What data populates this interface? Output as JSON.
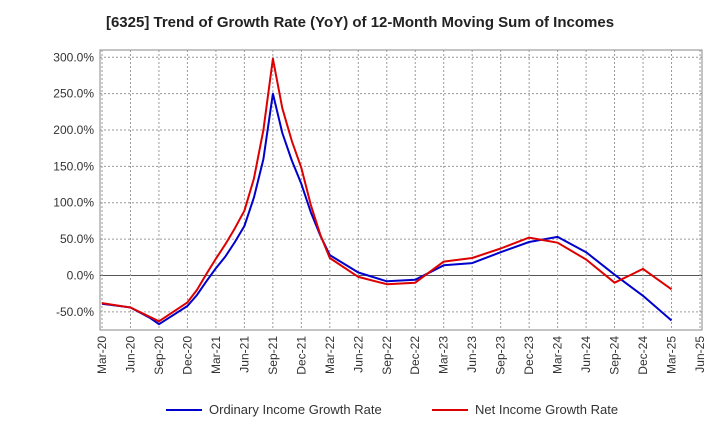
{
  "chart_data": {
    "type": "line",
    "title": "[6325]  Trend of Growth Rate (YoY) of 12-Month Moving Sum of Incomes",
    "xlabel": "",
    "ylabel": "",
    "x_ticks": [
      "Mar-20",
      "Jun-20",
      "Sep-20",
      "Dec-20",
      "Mar-21",
      "Jun-21",
      "Sep-21",
      "Dec-21",
      "Mar-22",
      "Jun-22",
      "Sep-22",
      "Dec-22",
      "Mar-23",
      "Jun-23",
      "Sep-23",
      "Dec-23",
      "Mar-24",
      "Jun-24",
      "Sep-24",
      "Dec-24",
      "Mar-25",
      "Jun-25"
    ],
    "y_ticks": [
      "300.0%",
      "250.0%",
      "200.0%",
      "150.0%",
      "100.0%",
      "50.0%",
      "0.0%",
      "-50.0%"
    ],
    "y_tick_values": [
      300,
      250,
      200,
      150,
      100,
      50,
      0,
      -50
    ],
    "ylim": [
      -75,
      310
    ],
    "grid": true,
    "legend_position": "bottom",
    "series": [
      {
        "name": "Ordinary Income Growth Rate",
        "color": "#0000cc",
        "points": [
          [
            "Mar-20",
            -39
          ],
          [
            "Jun-20",
            -44
          ],
          [
            "Aug-20",
            -58
          ],
          [
            "Sep-20",
            -67
          ],
          [
            "Dec-20",
            -42
          ],
          [
            "Jan-21",
            -27
          ],
          [
            "Feb-21",
            -8
          ],
          [
            "Mar-21",
            10
          ],
          [
            "Apr-21",
            26
          ],
          [
            "May-21",
            46
          ],
          [
            "Jun-21",
            68
          ],
          [
            "Jul-21",
            107
          ],
          [
            "Aug-21",
            160
          ],
          [
            "Sep-21",
            250
          ],
          [
            "Oct-21",
            196
          ],
          [
            "Nov-21",
            158
          ],
          [
            "Dec-21",
            126
          ],
          [
            "Jan-22",
            87
          ],
          [
            "Feb-22",
            55
          ],
          [
            "Mar-22",
            28
          ],
          [
            "Jun-22",
            4
          ],
          [
            "Sep-22",
            -8
          ],
          [
            "Dec-22",
            -6
          ],
          [
            "Mar-23",
            14
          ],
          [
            "Jun-23",
            17
          ],
          [
            "Sep-23",
            32
          ],
          [
            "Dec-23",
            46
          ],
          [
            "Mar-24",
            53
          ],
          [
            "Jun-24",
            32
          ],
          [
            "Sep-24",
            1
          ],
          [
            "Dec-24",
            -28
          ],
          [
            "Mar-25",
            -62
          ]
        ]
      },
      {
        "name": "Net Income Growth Rate",
        "color": "#dd0000",
        "points": [
          [
            "Mar-20",
            -38
          ],
          [
            "Jun-20",
            -44
          ],
          [
            "Sep-20",
            -63
          ],
          [
            "Dec-20",
            -37
          ],
          [
            "Jan-21",
            -20
          ],
          [
            "Feb-21",
            2
          ],
          [
            "Mar-21",
            23
          ],
          [
            "Apr-21",
            43
          ],
          [
            "May-21",
            65
          ],
          [
            "Jun-21",
            89
          ],
          [
            "Jul-21",
            133
          ],
          [
            "Aug-21",
            200
          ],
          [
            "Sep-21",
            298
          ],
          [
            "Oct-21",
            230
          ],
          [
            "Nov-21",
            185
          ],
          [
            "Dec-21",
            148
          ],
          [
            "Jan-22",
            97
          ],
          [
            "Feb-22",
            56
          ],
          [
            "Mar-22",
            24
          ],
          [
            "Jun-22",
            -2
          ],
          [
            "Sep-22",
            -12
          ],
          [
            "Dec-22",
            -10
          ],
          [
            "Mar-23",
            19
          ],
          [
            "Jun-23",
            24
          ],
          [
            "Sep-23",
            37
          ],
          [
            "Dec-23",
            52
          ],
          [
            "Mar-24",
            45
          ],
          [
            "Jun-24",
            22
          ],
          [
            "Sep-24",
            -10
          ],
          [
            "Dec-24",
            9
          ],
          [
            "Mar-25",
            -19
          ]
        ]
      }
    ]
  }
}
